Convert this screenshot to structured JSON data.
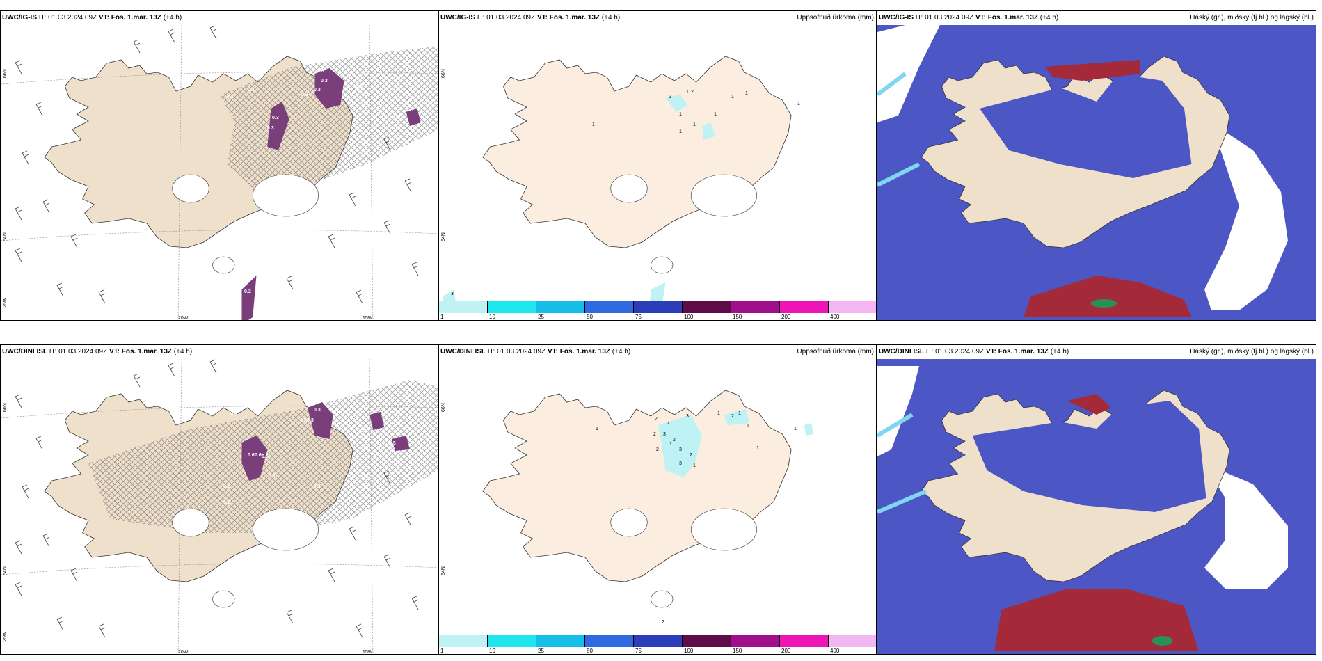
{
  "colors": {
    "land": "#efe0cc",
    "land_light": "#fbeee0",
    "accum_light": "#bff2f4",
    "cloud_high": "#4c56c4",
    "cloud_mid": "#5ea3ec",
    "cloud_low": "#7fd6f0",
    "red_cloud": "#a42a3a",
    "precip_purple": "#7a3e7a"
  },
  "panels": [
    {
      "id": "ig-wind-top",
      "header": {
        "model": "UWC/IG-IS",
        "it_label": "IT:",
        "it_value": "01.03.2024 09Z",
        "vt_label": "VT:",
        "vt_value": "Fös. 1.mar. 13Z",
        "lead": "(+4 h)"
      },
      "right_title": "",
      "axis_labels": [
        "66N",
        "64N",
        "25W",
        "20W",
        "15W"
      ],
      "value_labels": [
        "0.3",
        "0.3",
        "0.3",
        "0.3",
        "0.3",
        "0.3",
        "0.3",
        "0.1",
        "0.2",
        "0.3",
        "0.2",
        "0.1"
      ]
    },
    {
      "id": "ig-accum-top",
      "header": {
        "model": "UWC/IG-IS",
        "it_label": "IT:",
        "it_value": "01.03.2024 09Z",
        "vt_label": "VT:",
        "vt_value": "Fös. 1.mar. 13Z",
        "lead": "(+4 h)"
      },
      "right_title": "Uppsöfnuð úrkoma (mm)",
      "axis_labels": [
        "66N",
        "64N"
      ],
      "value_labels": [
        "2",
        "1",
        "2",
        "1",
        "1",
        "1",
        "1",
        "1",
        "1",
        "1",
        "1",
        "3"
      ],
      "scale_labels": [
        "1",
        "10",
        "25",
        "50",
        "75",
        "100",
        "150",
        "200",
        "400"
      ],
      "scale_colors": [
        "#bff2f4",
        "#1ee7ee",
        "#17bfe8",
        "#2f6ae0",
        "#2b3db8",
        "#5e0c4a",
        "#a0108a",
        "#ee15b5",
        "#f2b7f0"
      ]
    },
    {
      "id": "ig-cloud-top",
      "header": {
        "model": "UWC/IG-IS",
        "it_label": "IT:",
        "it_value": "01.03.2024 09Z",
        "vt_label": "VT:",
        "vt_value": "Fös. 1.mar. 13Z",
        "lead": "(+4 h)"
      },
      "right_title": "Háský (gr.), miðský (fj.bl.) og lágský (bl.)"
    },
    {
      "id": "dini-wind-bottom",
      "header": {
        "model": "UWC/DINI ISL",
        "it_label": "IT:",
        "it_value": "01.03.2024 09Z",
        "vt_label": "VT:",
        "vt_value": "Fös. 1.mar. 13Z",
        "lead": "(+4 h)"
      },
      "right_title": "",
      "axis_labels": [
        "66N",
        "64N",
        "25W",
        "20W",
        "15W"
      ],
      "value_labels": [
        "0.6",
        "0.6",
        "0.5",
        "0.3",
        "0.3",
        "0.3",
        "0.3",
        "0.5",
        "0.2",
        "0.3",
        "0.5",
        "0.3",
        "0.2"
      ]
    },
    {
      "id": "dini-accum-bottom",
      "header": {
        "model": "UWC/DINI ISL",
        "it_label": "IT:",
        "it_value": "01.03.2024 09Z",
        "vt_label": "VT:",
        "vt_value": "Fös. 1.mar. 13Z",
        "lead": "(+4 h)"
      },
      "right_title": "Uppsöfnuð úrkoma (mm)",
      "axis_labels": [
        "66N",
        "64N"
      ],
      "value_labels": [
        "2",
        "4",
        "3",
        "3",
        "2",
        "2",
        "3",
        "2",
        "1",
        "2",
        "1",
        "1",
        "3",
        "1",
        "2",
        "1",
        "1",
        "1",
        "1",
        "2"
      ],
      "scale_labels": [
        "1",
        "10",
        "25",
        "50",
        "75",
        "100",
        "150",
        "200",
        "400"
      ],
      "scale_colors": [
        "#bff2f4",
        "#1ee7ee",
        "#17bfe8",
        "#2f6ae0",
        "#2b3db8",
        "#5e0c4a",
        "#a0108a",
        "#ee15b5",
        "#f2b7f0"
      ]
    },
    {
      "id": "dini-cloud-bottom",
      "header": {
        "model": "UWC/DINI ISL",
        "it_label": "IT:",
        "it_value": "01.03.2024 09Z",
        "vt_label": "VT:",
        "vt_value": "Fös. 1.mar. 13Z",
        "lead": "(+4 h)"
      },
      "right_title": "Háský (gr.), miðský (fj.bl.) og lágský (bl.)"
    }
  ]
}
